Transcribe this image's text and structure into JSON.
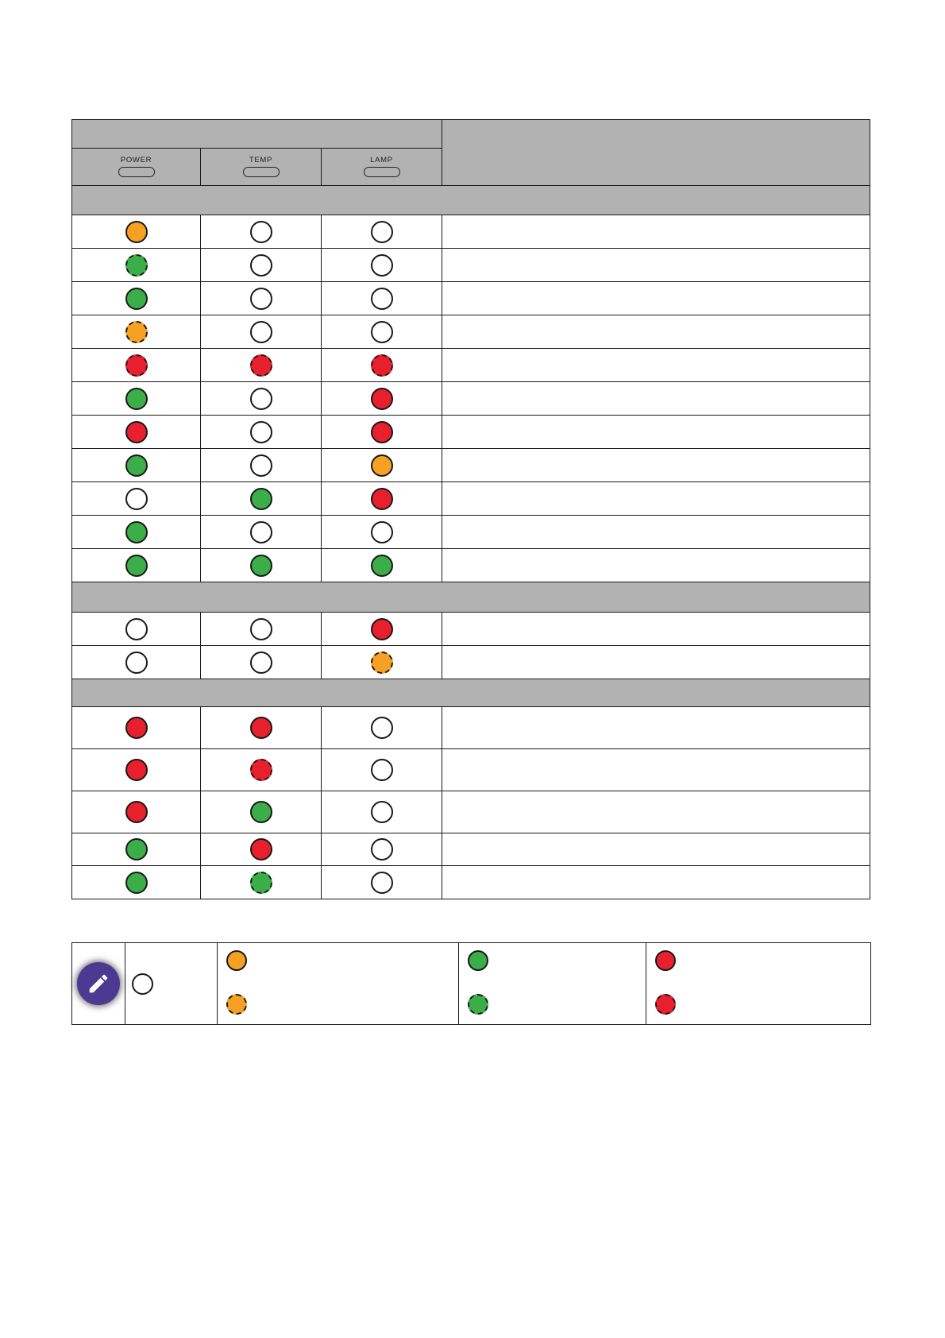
{
  "header": {
    "power_label": "POWER",
    "temp_label": "TEMP",
    "lamp_label": "LAMP",
    "top_cell_text": "",
    "status_cell_text": ""
  },
  "colors": {
    "table_header_gray": "#b2b2b2",
    "grid_line": "#1a1a1a",
    "orange": "#f6a124",
    "green": "#3bae49",
    "red": "#e8202d",
    "off_white": "#ffffff",
    "note_icon_purple": "#4b3a92"
  },
  "sections": [
    {
      "title": "",
      "rows": [
        {
          "power": "orange",
          "temp": "off",
          "lamp": "off",
          "description": ""
        },
        {
          "power": "green-flash",
          "temp": "off",
          "lamp": "off",
          "description": ""
        },
        {
          "power": "green",
          "temp": "off",
          "lamp": "off",
          "description": ""
        },
        {
          "power": "orange-flash",
          "temp": "off",
          "lamp": "off",
          "description": ""
        },
        {
          "power": "red-flash",
          "temp": "red-flash",
          "lamp": "red-flash",
          "description": ""
        },
        {
          "power": "green",
          "temp": "off",
          "lamp": "red",
          "description": ""
        },
        {
          "power": "red",
          "temp": "off",
          "lamp": "red",
          "description": ""
        },
        {
          "power": "green",
          "temp": "off",
          "lamp": "orange",
          "description": ""
        },
        {
          "power": "off",
          "temp": "green",
          "lamp": "red",
          "description": ""
        },
        {
          "power": "green",
          "temp": "off",
          "lamp": "off",
          "description": ""
        },
        {
          "power": "green",
          "temp": "green",
          "lamp": "green",
          "description": ""
        }
      ]
    },
    {
      "title": "",
      "rows": [
        {
          "power": "off",
          "temp": "off",
          "lamp": "red",
          "description": ""
        },
        {
          "power": "off",
          "temp": "off",
          "lamp": "orange-flash",
          "description": ""
        }
      ]
    },
    {
      "title": "",
      "rows": [
        {
          "power": "red",
          "temp": "red",
          "lamp": "off",
          "description": ""
        },
        {
          "power": "red",
          "temp": "red-flash",
          "lamp": "off",
          "description": ""
        },
        {
          "power": "red",
          "temp": "green",
          "lamp": "off",
          "description": ""
        },
        {
          "power": "green",
          "temp": "red",
          "lamp": "off",
          "description": ""
        },
        {
          "power": "green",
          "temp": "green-flash",
          "lamp": "off",
          "description": ""
        }
      ]
    }
  ],
  "legend": {
    "note_icon": "pencil-note-icon",
    "off_item": {
      "state": "off",
      "label": ""
    },
    "pairs": [
      {
        "solid": "orange",
        "flashing": "orange-flash",
        "label": ""
      },
      {
        "solid": "green",
        "flashing": "green-flash",
        "label": ""
      },
      {
        "solid": "red",
        "flashing": "red-flash",
        "label": ""
      }
    ]
  }
}
